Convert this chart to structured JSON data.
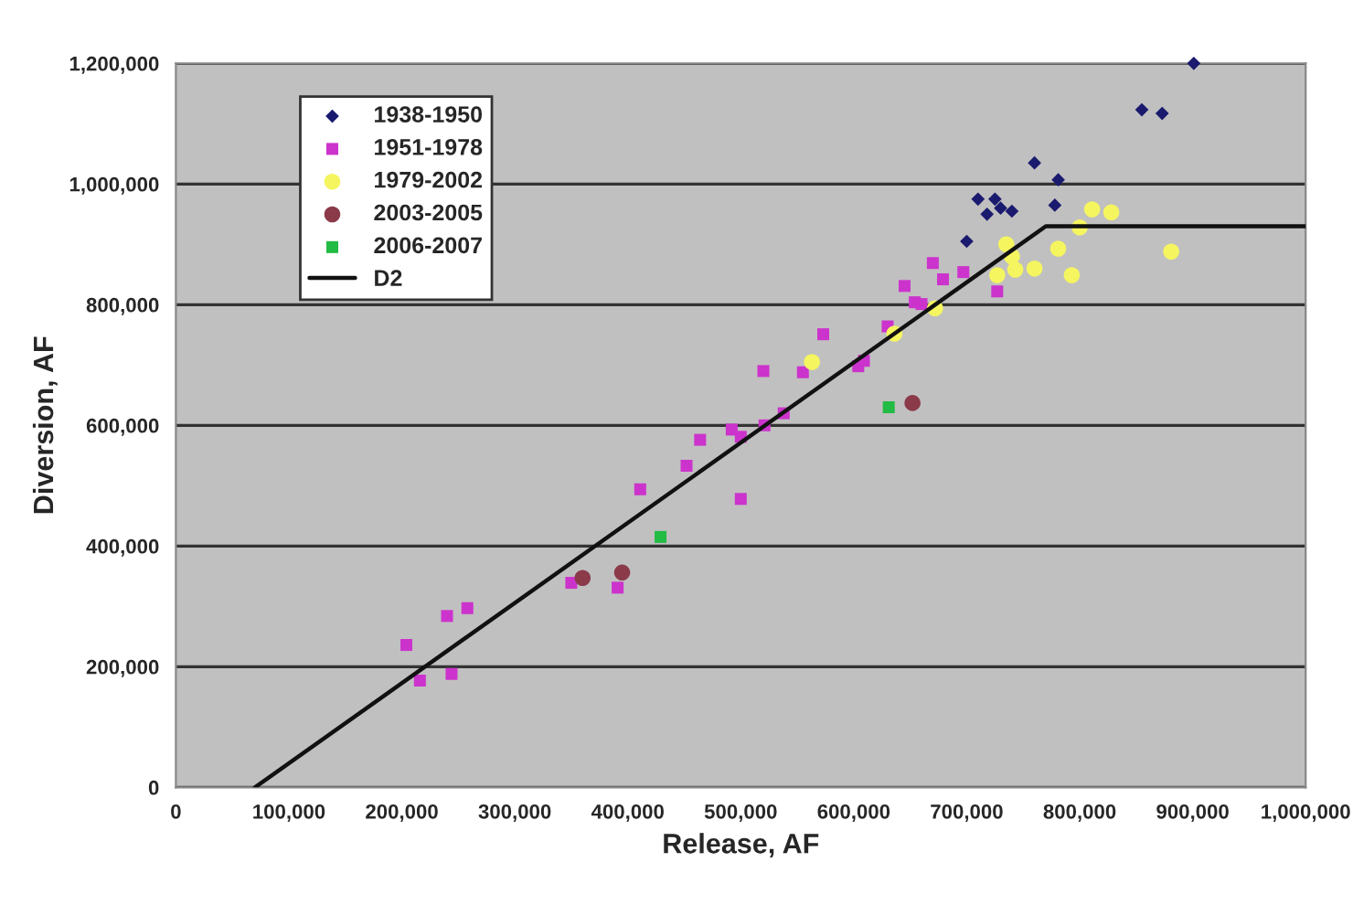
{
  "chart_data": {
    "type": "scatter",
    "xlabel": "Release, AF",
    "ylabel": "Diversion, AF",
    "xlim": [
      0,
      1000000
    ],
    "ylim": [
      0,
      1200000
    ],
    "xticks": [
      0,
      {
        "value": 100000,
        "label": "100,000"
      },
      {
        "value": 200000,
        "label": "200,000"
      },
      {
        "value": 300000,
        "label": "300,000"
      },
      {
        "value": 400000,
        "label": "400,000"
      },
      {
        "value": 500000,
        "label": "500,000"
      },
      {
        "value": 600000,
        "label": "600,000"
      },
      {
        "value": 700000,
        "label": "700,000"
      },
      {
        "value": 800000,
        "label": "800,000"
      },
      {
        "value": 900000,
        "label": "900,000"
      },
      {
        "value": 1000000,
        "label": "1,000,000"
      }
    ],
    "yticks": [
      0,
      {
        "value": 200000,
        "label": "200,000"
      },
      {
        "value": 400000,
        "label": "400,000"
      },
      {
        "value": 600000,
        "label": "600,000"
      },
      {
        "value": 800000,
        "label": "800,000"
      },
      {
        "value": 1000000,
        "label": "1,000,000"
      },
      {
        "value": 1200000,
        "label": "1,200,000"
      }
    ],
    "grid": "y",
    "legend": "top left",
    "series": [
      {
        "name": "1938-1950",
        "color": "#1a1a6e",
        "marker": "diamond",
        "x": [
          901000,
          855000,
          873000,
          781000,
          700000,
          710000,
          718000,
          725000,
          730000,
          740000,
          760000,
          778000
        ],
        "values": [
          1200000,
          1123000,
          1117000,
          1007000,
          905000,
          975000,
          950000,
          975000,
          960000,
          955000,
          1035000,
          965000
        ]
      },
      {
        "name": "1951-1978",
        "color": "#cc33cc",
        "marker": "square",
        "x": [
          204000,
          216000,
          244000,
          240000,
          258000,
          350000,
          391000,
          411000,
          452000,
          464000,
          500000,
          492000,
          500000,
          521000,
          538000,
          555000,
          573000,
          604000,
          609000,
          630000,
          645000,
          670000,
          679000,
          697000,
          654000,
          660000,
          727000,
          520000
        ],
        "values": [
          236000,
          177000,
          188000,
          284000,
          297000,
          339000,
          331000,
          494000,
          533000,
          576000,
          478000,
          593000,
          581000,
          600000,
          620000,
          688000,
          751000,
          698000,
          707000,
          764000,
          831000,
          869000,
          842000,
          854000,
          804000,
          801000,
          822000,
          690000
        ]
      },
      {
        "name": "1979-2002",
        "color": "#f5f560",
        "marker": "circle",
        "x": [
          563000,
          636000,
          672000,
          727000,
          743000,
          793000,
          881000,
          811000,
          828000,
          800000,
          781000,
          735000,
          740000,
          760000
        ],
        "values": [
          705000,
          752000,
          794000,
          849000,
          858000,
          849000,
          888000,
          958000,
          953000,
          928000,
          893000,
          900000,
          880000,
          860000
        ]
      },
      {
        "name": "2003-2005",
        "color": "#8b3a4a",
        "marker": "circle",
        "x": [
          360000,
          395000,
          652000
        ],
        "values": [
          347000,
          356000,
          637000
        ]
      },
      {
        "name": "2006-2007",
        "color": "#22bb44",
        "marker": "square",
        "x": [
          429000,
          631000
        ],
        "values": [
          415000,
          630000
        ]
      },
      {
        "name": "D2",
        "type": "line",
        "color": "#111111",
        "x": [
          70000,
          770000,
          1000000
        ],
        "values": [
          0,
          930000,
          930000
        ]
      }
    ]
  }
}
